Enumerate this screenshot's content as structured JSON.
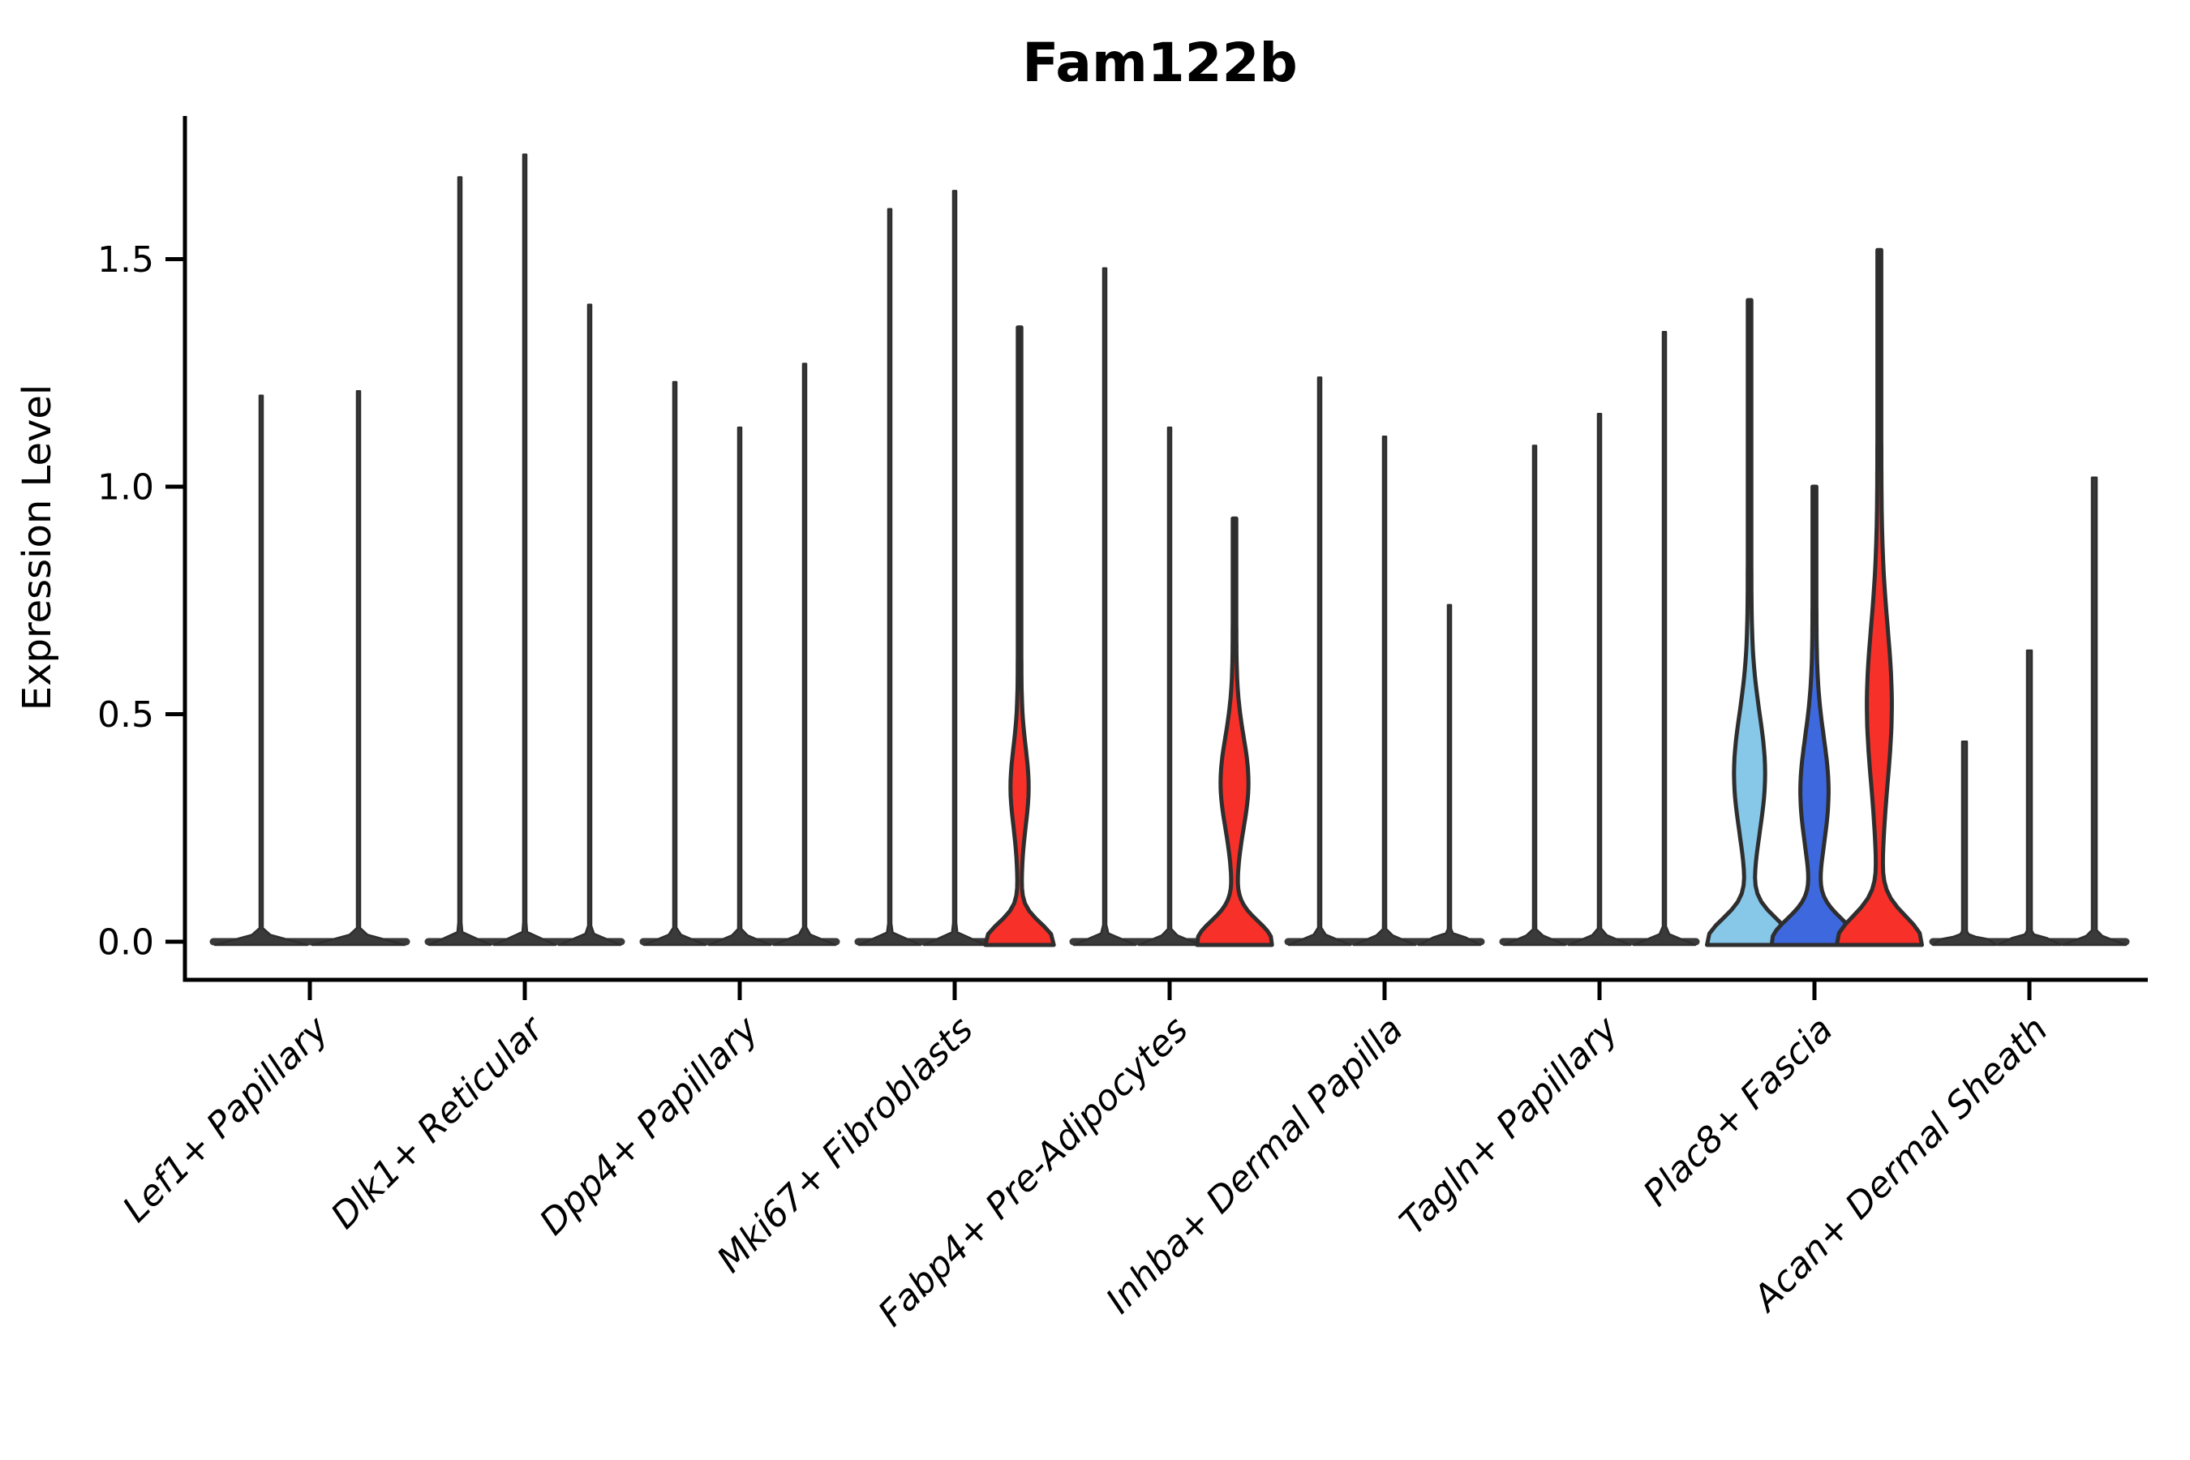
{
  "title": "Fam122b",
  "y_axis": {
    "label": "Expression Level",
    "ticks": [
      {
        "label": "0.0",
        "value": 0.0
      },
      {
        "label": "0.5",
        "value": 0.5
      },
      {
        "label": "1.0",
        "value": 1.0
      },
      {
        "label": "1.5",
        "value": 1.5
      }
    ]
  },
  "colors": {
    "outline": "#2e2e2e",
    "stem": "#3a3a3a",
    "axis": "#000000",
    "light_blue": "#87C7E8",
    "dark_blue": "#3E68DE",
    "red": "#F73029"
  },
  "chart_data": {
    "type": "violin",
    "title": "Fam122b",
    "xlabel": "",
    "ylabel": "Expression Level",
    "ylim": [
      0,
      1.8
    ],
    "grid": false,
    "legend": "none",
    "categories": [
      "Lef1+ Papillary",
      "Dlk1+ Reticular",
      "Dpp4+ Papillary",
      "Mki67+ Fibroblasts",
      "Fabp4+ Pre-Adipocytes",
      "Inhba+ Dermal Papilla",
      "Tagln+ Papillary",
      "Plac8+ Fascia",
      "Acan+ Dermal Sheath"
    ],
    "groups": [
      {
        "category": "Lef1+ Papillary",
        "violins": [
          {
            "offset": -60,
            "max": 1.2,
            "fill": null,
            "base_hw": 55,
            "base_sigma": 0.008,
            "stem_hw": 2.0,
            "bulge": null
          },
          {
            "offset": 60,
            "max": 1.21,
            "fill": null,
            "base_hw": 55,
            "base_sigma": 0.008,
            "stem_hw": 2.0,
            "bulge": null
          }
        ]
      },
      {
        "category": "Dlk1+ Reticular",
        "violins": [
          {
            "offset": -80,
            "max": 1.68,
            "fill": null,
            "base_hw": 36,
            "base_sigma": 0.008,
            "stem_hw": 2.0,
            "bulge": null
          },
          {
            "offset": 0,
            "max": 1.73,
            "fill": null,
            "base_hw": 36,
            "base_sigma": 0.008,
            "stem_hw": 2.0,
            "bulge": null
          },
          {
            "offset": 80,
            "max": 1.4,
            "fill": null,
            "base_hw": 36,
            "base_sigma": 0.008,
            "stem_hw": 2.0,
            "bulge": null
          }
        ]
      },
      {
        "category": "Dpp4+ Papillary",
        "violins": [
          {
            "offset": -80,
            "max": 1.23,
            "fill": null,
            "base_hw": 36,
            "base_sigma": 0.008,
            "stem_hw": 2.0,
            "bulge": null
          },
          {
            "offset": 0,
            "max": 1.13,
            "fill": null,
            "base_hw": 36,
            "base_sigma": 0.008,
            "stem_hw": 2.0,
            "bulge": null
          },
          {
            "offset": 80,
            "max": 1.27,
            "fill": null,
            "base_hw": 36,
            "base_sigma": 0.008,
            "stem_hw": 2.0,
            "bulge": null
          }
        ]
      },
      {
        "category": "Mki67+ Fibroblasts",
        "violins": [
          {
            "offset": -80,
            "max": 1.61,
            "fill": null,
            "base_hw": 36,
            "base_sigma": 0.008,
            "stem_hw": 2.0,
            "bulge": null
          },
          {
            "offset": 0,
            "max": 1.65,
            "fill": null,
            "base_hw": 36,
            "base_sigma": 0.008,
            "stem_hw": 2.0,
            "bulge": null
          },
          {
            "offset": 80,
            "max": 1.35,
            "fill": "#F73029",
            "base_hw": 40,
            "base_sigma": 0.04,
            "stem_hw": 2.2,
            "bulge": {
              "mu": 0.34,
              "amp": 9,
              "sigma": 0.085
            }
          }
        ]
      },
      {
        "category": "Fabp4+ Pre-Adipocytes",
        "violins": [
          {
            "offset": -80,
            "max": 1.48,
            "fill": null,
            "base_hw": 36,
            "base_sigma": 0.008,
            "stem_hw": 2.0,
            "bulge": null
          },
          {
            "offset": 0,
            "max": 1.13,
            "fill": null,
            "base_hw": 36,
            "base_sigma": 0.008,
            "stem_hw": 2.0,
            "bulge": null
          },
          {
            "offset": 80,
            "max": 0.93,
            "fill": "#F73029",
            "base_hw": 44,
            "base_sigma": 0.045,
            "stem_hw": 2.2,
            "bulge": {
              "mu": 0.35,
              "amp": 15,
              "sigma": 0.1
            }
          }
        ]
      },
      {
        "category": "Inhba+ Dermal Papilla",
        "violins": [
          {
            "offset": -80,
            "max": 1.24,
            "fill": null,
            "base_hw": 36,
            "base_sigma": 0.008,
            "stem_hw": 2.0,
            "bulge": null
          },
          {
            "offset": 0,
            "max": 1.11,
            "fill": null,
            "base_hw": 36,
            "base_sigma": 0.008,
            "stem_hw": 2.0,
            "bulge": null
          },
          {
            "offset": 80,
            "max": 0.74,
            "fill": null,
            "base_hw": 36,
            "base_sigma": 0.008,
            "stem_hw": 2.0,
            "bulge": null
          }
        ]
      },
      {
        "category": "Tagln+ Papillary",
        "violins": [
          {
            "offset": -80,
            "max": 1.09,
            "fill": null,
            "base_hw": 36,
            "base_sigma": 0.008,
            "stem_hw": 2.0,
            "bulge": null
          },
          {
            "offset": 0,
            "max": 1.16,
            "fill": null,
            "base_hw": 36,
            "base_sigma": 0.008,
            "stem_hw": 2.0,
            "bulge": null
          },
          {
            "offset": 80,
            "max": 1.34,
            "fill": null,
            "base_hw": 36,
            "base_sigma": 0.008,
            "stem_hw": 2.0,
            "bulge": null
          }
        ]
      },
      {
        "category": "Plac8+ Fascia",
        "violins": [
          {
            "offset": -80,
            "max": 1.41,
            "fill": "#87C7E8",
            "base_hw": 50,
            "base_sigma": 0.05,
            "stem_hw": 2.2,
            "bulge": {
              "mu": 0.37,
              "amp": 17,
              "sigma": 0.13
            }
          },
          {
            "offset": 0,
            "max": 1.0,
            "fill": "#3E68DE",
            "base_hw": 50,
            "base_sigma": 0.05,
            "stem_hw": 2.4,
            "bulge": {
              "mu": 0.33,
              "amp": 15,
              "sigma": 0.12
            }
          },
          {
            "offset": 80,
            "max": 1.52,
            "fill": "#F73029",
            "base_hw": 50,
            "base_sigma": 0.055,
            "stem_hw": 2.4,
            "bulge": {
              "mu": 0.52,
              "amp": 13,
              "sigma": 0.17
            }
          }
        ]
      },
      {
        "category": "Acan+ Dermal Sheath",
        "violins": [
          {
            "offset": -80,
            "max": 0.44,
            "fill": null,
            "base_hw": 36,
            "base_sigma": 0.007,
            "stem_hw": 3.0,
            "bulge": null
          },
          {
            "offset": 0,
            "max": 0.64,
            "fill": null,
            "base_hw": 36,
            "base_sigma": 0.007,
            "stem_hw": 3.0,
            "bulge": null
          },
          {
            "offset": 80,
            "max": 1.02,
            "fill": null,
            "base_hw": 36,
            "base_sigma": 0.007,
            "stem_hw": 3.0,
            "bulge": null
          }
        ]
      }
    ]
  }
}
